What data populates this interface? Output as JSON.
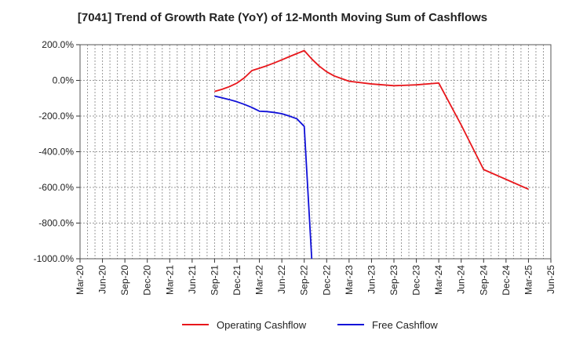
{
  "chart_data": {
    "type": "line",
    "title": "[7041]  Trend of Growth Rate (YoY) of 12-Month Moving Sum of Cashflows",
    "xlabel": "",
    "ylabel": "",
    "x_ticks": [
      "Mar-20",
      "Jun-20",
      "Sep-20",
      "Dec-20",
      "Mar-21",
      "Jun-21",
      "Sep-21",
      "Dec-21",
      "Mar-22",
      "Jun-22",
      "Sep-22",
      "Dec-22",
      "Mar-23",
      "Jun-23",
      "Sep-23",
      "Dec-23",
      "Mar-24",
      "Jun-24",
      "Sep-24",
      "Dec-24",
      "Mar-25",
      "Jun-25"
    ],
    "y_ticks": [
      "200.0%",
      "0.0%",
      "-200.0%",
      "-400.0%",
      "-600.0%",
      "-800.0%",
      "-1000.0%"
    ],
    "ylim": [
      -1000,
      200
    ],
    "grid": true,
    "legend_position": "bottom",
    "series": [
      {
        "name": "Operating Cashflow",
        "color": "#e8161b",
        "points": [
          [
            "Sep-21",
            -62
          ],
          [
            "Oct-21",
            -50
          ],
          [
            "Nov-21",
            -35
          ],
          [
            "Dec-21",
            -15
          ],
          [
            "Jan-22",
            15
          ],
          [
            "Feb-22",
            55
          ],
          [
            "Mar-22",
            68
          ],
          [
            "Apr-22",
            82
          ],
          [
            "May-22",
            98
          ],
          [
            "Jun-22",
            115
          ],
          [
            "Jul-22",
            133
          ],
          [
            "Aug-22",
            150
          ],
          [
            "Sep-22",
            167
          ],
          [
            "Oct-22",
            120
          ],
          [
            "Nov-22",
            80
          ],
          [
            "Dec-22",
            48
          ],
          [
            "Jan-23",
            25
          ],
          [
            "Feb-23",
            10
          ],
          [
            "Mar-23",
            -5
          ],
          [
            "Jun-23",
            -20
          ],
          [
            "Sep-23",
            -30
          ],
          [
            "Dec-23",
            -25
          ],
          [
            "Mar-24",
            -15
          ],
          [
            "Jun-24",
            -250
          ],
          [
            "Sep-24",
            -500
          ],
          [
            "Dec-24",
            -555
          ],
          [
            "Mar-25",
            -610
          ]
        ]
      },
      {
        "name": "Free Cashflow",
        "color": "#1010d8",
        "points": [
          [
            "Sep-21",
            -88
          ],
          [
            "Oct-21",
            -98
          ],
          [
            "Nov-21",
            -108
          ],
          [
            "Dec-21",
            -120
          ],
          [
            "Jan-22",
            -135
          ],
          [
            "Feb-22",
            -152
          ],
          [
            "Mar-22",
            -173
          ],
          [
            "Apr-22",
            -175
          ],
          [
            "May-22",
            -180
          ],
          [
            "Jun-22",
            -187
          ],
          [
            "Jul-22",
            -200
          ],
          [
            "Aug-22",
            -215
          ],
          [
            "Sep-22",
            -258
          ],
          [
            "Oct-22",
            -1000
          ]
        ]
      }
    ]
  }
}
